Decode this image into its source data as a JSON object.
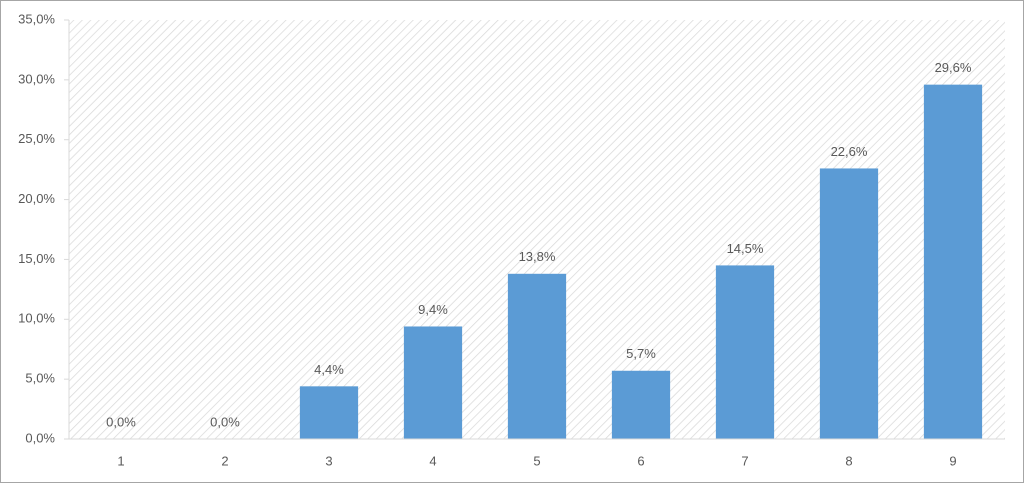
{
  "chart_data": {
    "type": "bar",
    "categories": [
      "1",
      "2",
      "3",
      "4",
      "5",
      "6",
      "7",
      "8",
      "9"
    ],
    "values": [
      0,
      0,
      4.4,
      9.4,
      13.8,
      5.7,
      14.5,
      22.6,
      29.6
    ],
    "value_labels": [
      "0,0%",
      "0,0%",
      "4,4%",
      "9,4%",
      "13,8%",
      "5,7%",
      "14,5%",
      "22,6%",
      "29,6%"
    ],
    "color": "#5b9bd5",
    "ylim": [
      0,
      35
    ],
    "yticks": [
      {
        "value": 0,
        "label": "0,0%"
      },
      {
        "value": 5,
        "label": "5,0%"
      },
      {
        "value": 10,
        "label": "10,0%"
      },
      {
        "value": 15,
        "label": "15,0%"
      },
      {
        "value": 20,
        "label": "20,0%"
      },
      {
        "value": 25,
        "label": "25,0%"
      },
      {
        "value": 30,
        "label": "30,0%"
      },
      {
        "value": 35,
        "label": "35,0%"
      }
    ]
  }
}
